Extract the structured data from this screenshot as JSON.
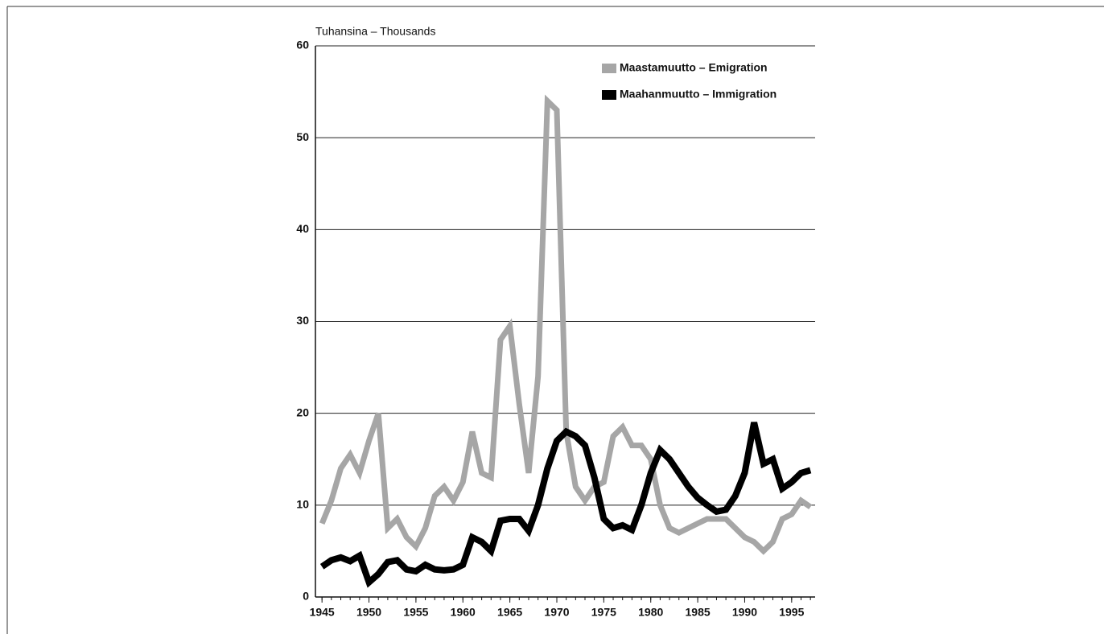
{
  "chart_data": {
    "type": "line",
    "y_label": "Tuhansina – Thousands",
    "x": [
      1945,
      1946,
      1947,
      1948,
      1949,
      1950,
      1951,
      1952,
      1953,
      1954,
      1955,
      1956,
      1957,
      1958,
      1959,
      1960,
      1961,
      1962,
      1963,
      1964,
      1965,
      1966,
      1967,
      1968,
      1969,
      1970,
      1971,
      1972,
      1973,
      1974,
      1975,
      1976,
      1977,
      1978,
      1979,
      1980,
      1981,
      1982,
      1983,
      1984,
      1985,
      1986,
      1987,
      1988,
      1989,
      1990,
      1991,
      1992,
      1993,
      1994,
      1995,
      1996,
      1997
    ],
    "series": [
      {
        "name": "Maastamuutto – Emigration",
        "color": "#a6a6a6",
        "values": [
          8,
          10.5,
          14,
          15.5,
          13.5,
          17,
          20,
          7.5,
          8.5,
          6.5,
          5.5,
          7.5,
          11,
          12,
          10.5,
          12.5,
          18,
          13.5,
          13,
          28,
          29.5,
          21,
          13.5,
          24,
          54,
          53,
          18,
          12,
          10.5,
          12,
          12.5,
          17.5,
          18.5,
          16.5,
          16.5,
          15,
          10,
          7.5,
          7,
          7.5,
          8,
          8.5,
          8.5,
          8.5,
          7.5,
          6.5,
          6,
          5,
          6,
          8.5,
          9,
          10.5,
          9.8
        ]
      },
      {
        "name": "Maahanmuutto – Immigration",
        "color": "#000000",
        "values": [
          3.3,
          4,
          4.3,
          3.9,
          4.5,
          1.6,
          2.5,
          3.8,
          4,
          3,
          2.8,
          3.5,
          3,
          2.9,
          3,
          3.5,
          6.5,
          6,
          5,
          8.3,
          8.5,
          8.5,
          7.2,
          10,
          14,
          17,
          18,
          17.5,
          16.5,
          13,
          8.5,
          7.5,
          7.8,
          7.3,
          10,
          13.5,
          16,
          15,
          13.5,
          12,
          10.8,
          10,
          9.3,
          9.5,
          11,
          13.5,
          19,
          14.5,
          15,
          11.8,
          12.5,
          13.5,
          13.8
        ]
      }
    ],
    "xlim": [
      1944.3,
      1997.5
    ],
    "xticks": [
      1945,
      1950,
      1955,
      1960,
      1965,
      1970,
      1975,
      1980,
      1985,
      1990,
      1995
    ],
    "ylim": [
      0,
      60
    ],
    "yticks": [
      0,
      10,
      20,
      30,
      40,
      50,
      60
    ],
    "grid": true,
    "legend": "upper right"
  }
}
